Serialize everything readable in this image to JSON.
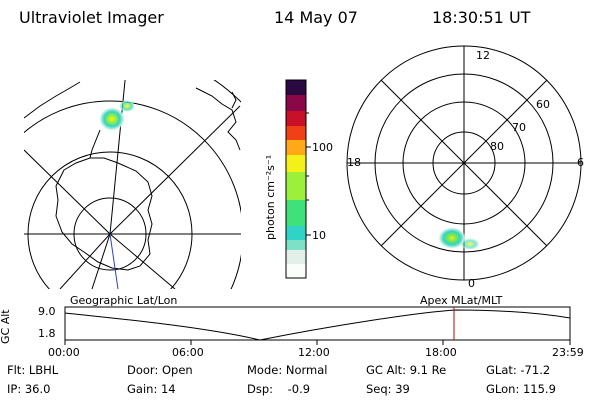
{
  "header": {
    "title": "Ultraviolet Imager",
    "date": "14 May 07",
    "time": "18:30:51 UT"
  },
  "colorbar": {
    "unit_label": "photon cm⁻²s⁻¹",
    "tick_100": "100",
    "tick_10": "10",
    "colors": [
      "#fbfdfb",
      "#e3f0e9",
      "#7fe0c8",
      "#2fd4c6",
      "#3fe27a",
      "#9cf03a",
      "#f4f01a",
      "#ffa818",
      "#f04018",
      "#c81028",
      "#8a0848",
      "#2a0a40"
    ]
  },
  "geo_map": {
    "label": "Geographic Lat/Lon"
  },
  "mag_map": {
    "label": "Apex MLat/MLT",
    "mlt_top": "12",
    "mlt_bottom": "0",
    "mlt_left": "18",
    "mlt_right": "6",
    "lat_60": "60",
    "lat_70": "70",
    "lat_80": "80"
  },
  "altitude_plot": {
    "axis_label": "GC Alt",
    "y_max": "9.0",
    "y_min": "1.8",
    "x_ticks": [
      "00:00",
      "06:00",
      "12:00",
      "18:00",
      "23:59"
    ],
    "current_marker_color": "#cc0000"
  },
  "info": {
    "filter": "Flt: LBHL",
    "door": "Door: Open",
    "mode": "Mode: Normal",
    "gc_alt": "GC Alt: 9.1 Re",
    "glat": "GLat: -71.2",
    "ip": "IP: 36.0",
    "gain": "Gain: 14",
    "dsp": "Dsp:    -0.9",
    "seq": "Seq: 39",
    "glon": "GLon: 115.9"
  }
}
